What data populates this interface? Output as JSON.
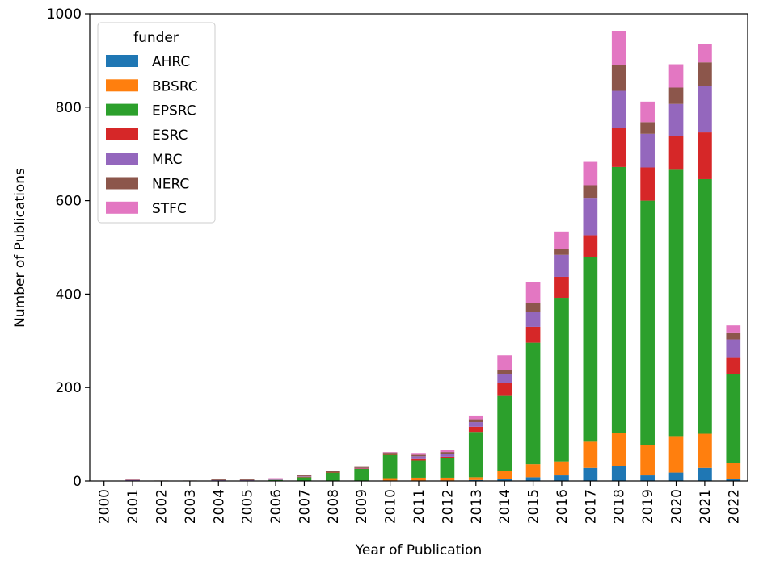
{
  "chart_data": {
    "type": "bar",
    "stacked": true,
    "xlabel": "Year of Publication",
    "ylabel": "Number of Publications",
    "ylim": [
      0,
      1000
    ],
    "yticks": [
      0,
      200,
      400,
      600,
      800,
      1000
    ],
    "grid": false,
    "legend": {
      "title": "funder",
      "placement": "top-left"
    },
    "categories": [
      "2000",
      "2001",
      "2002",
      "2003",
      "2004",
      "2005",
      "2006",
      "2007",
      "2008",
      "2009",
      "2010",
      "2011",
      "2012",
      "2013",
      "2014",
      "2015",
      "2016",
      "2017",
      "2018",
      "2019",
      "2020",
      "2021",
      "2022"
    ],
    "series": [
      {
        "name": "AHRC",
        "color": "#1f77b4",
        "values": [
          0,
          0,
          0,
          0,
          0,
          0,
          0,
          0,
          0,
          0,
          1,
          1,
          1,
          2,
          5,
          8,
          12,
          28,
          32,
          12,
          18,
          28,
          5
        ]
      },
      {
        "name": "BBSRC",
        "color": "#ff7f0e",
        "values": [
          0,
          0,
          0,
          0,
          0,
          0,
          0,
          0,
          0,
          0,
          5,
          6,
          6,
          6,
          17,
          28,
          30,
          56,
          70,
          65,
          78,
          73,
          33
        ]
      },
      {
        "name": "EPSRC",
        "color": "#2ca02c",
        "values": [
          0,
          0,
          0,
          0,
          1,
          1,
          2,
          8,
          18,
          26,
          50,
          37,
          42,
          97,
          160,
          260,
          350,
          395,
          570,
          523,
          570,
          545,
          190
        ]
      },
      {
        "name": "ESRC",
        "color": "#d62728",
        "values": [
          0,
          0,
          0,
          0,
          0,
          0,
          0,
          1,
          1,
          1,
          1,
          3,
          3,
          11,
          27,
          34,
          45,
          47,
          83,
          71,
          73,
          100,
          37
        ]
      },
      {
        "name": "MRC",
        "color": "#9467bd",
        "values": [
          0,
          2,
          0,
          0,
          1,
          1,
          1,
          1,
          0,
          1,
          2,
          6,
          6,
          10,
          20,
          32,
          47,
          80,
          80,
          72,
          68,
          100,
          38
        ]
      },
      {
        "name": "NERC",
        "color": "#8c564b",
        "values": [
          0,
          1,
          1,
          1,
          2,
          2,
          2,
          2,
          2,
          2,
          2,
          3,
          4,
          6,
          8,
          18,
          13,
          27,
          55,
          25,
          35,
          50,
          15
        ]
      },
      {
        "name": "STFC",
        "color": "#e377c2",
        "values": [
          0,
          1,
          0,
          0,
          1,
          1,
          1,
          1,
          0,
          0,
          1,
          4,
          4,
          8,
          32,
          46,
          37,
          50,
          72,
          44,
          50,
          40,
          15
        ]
      }
    ]
  }
}
